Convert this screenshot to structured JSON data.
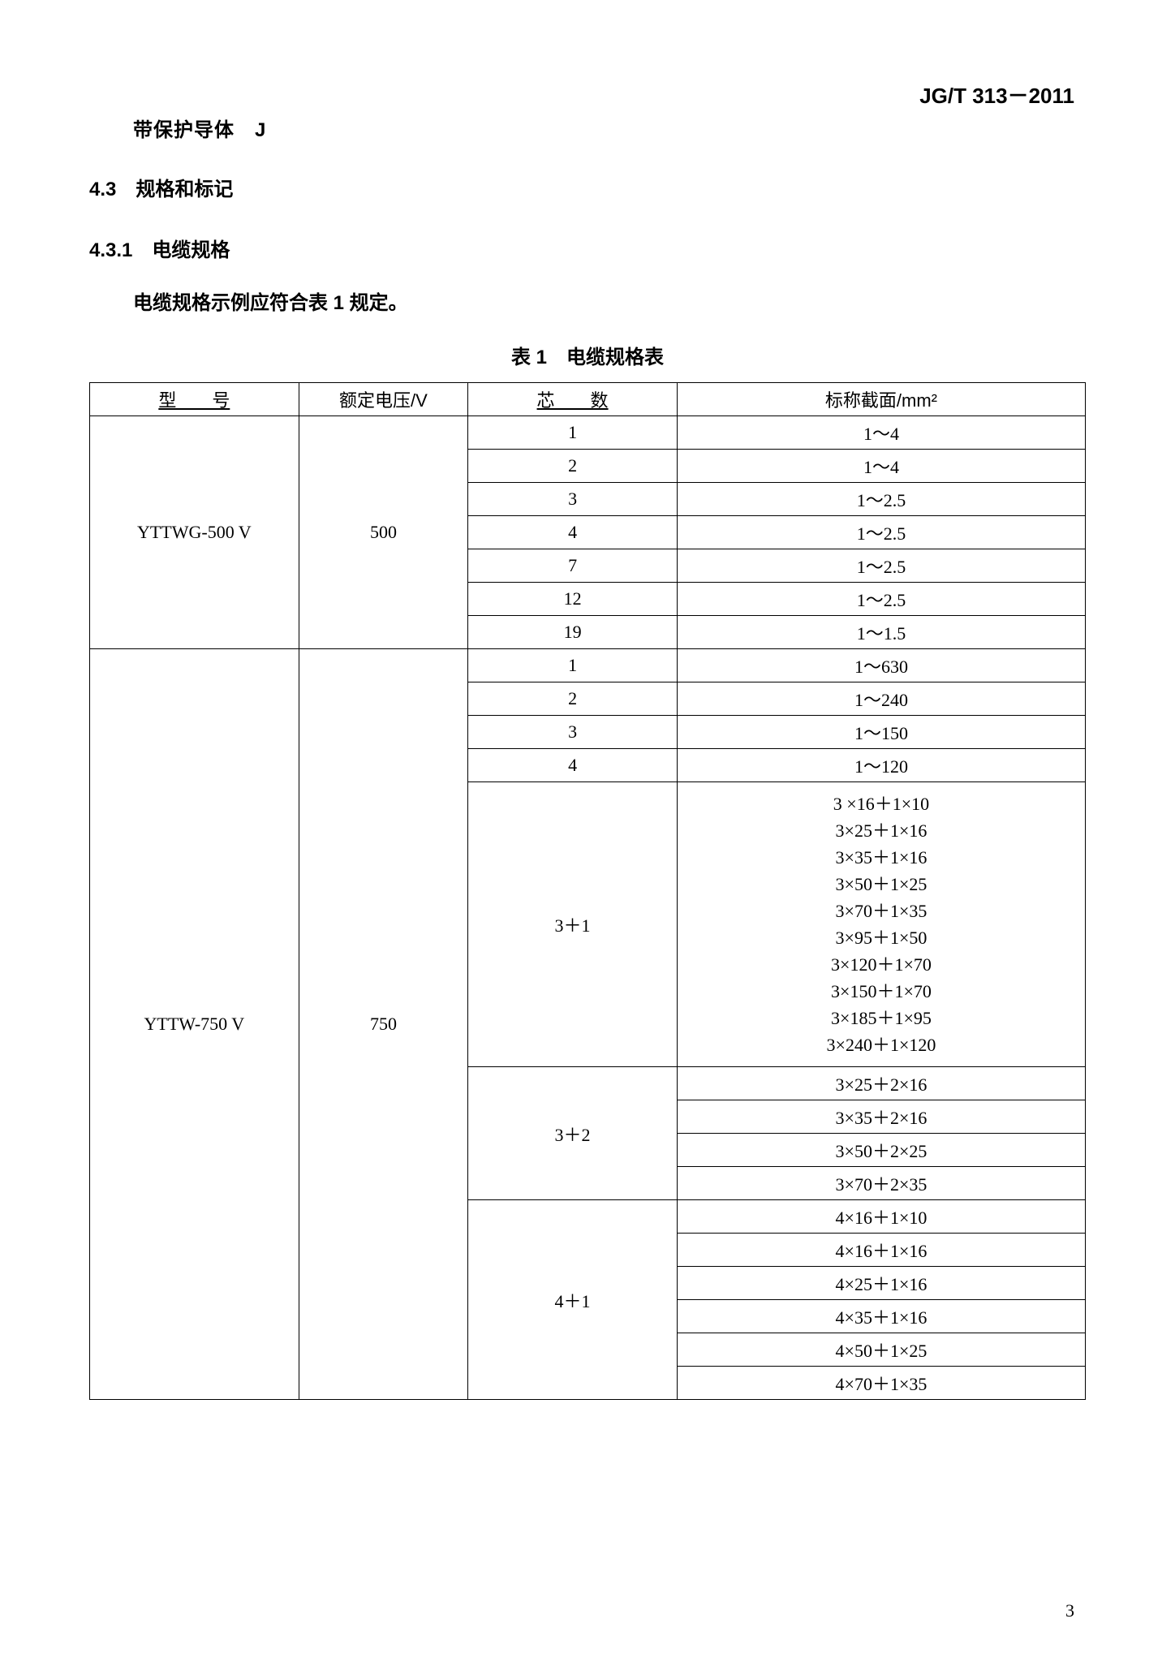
{
  "header_code": "JG/T 313－2011",
  "line1": "带保护导体　J",
  "section_4_3": "4.3　规格和标记",
  "section_4_3_1": "4.3.1　电缆规格",
  "body_text": "电缆规格示例应符合表 1 规定。",
  "table_caption": "表 1　电缆规格表",
  "page_num": "3",
  "table": {
    "headers": {
      "model": "型　　号",
      "voltage": "额定电压/V",
      "cores": "芯　　数",
      "section": "标称截面/mm²"
    },
    "group1": {
      "model": "YTTWG-500 V",
      "voltage": "500",
      "rows": [
        {
          "cores": "1",
          "section": "1～4"
        },
        {
          "cores": "2",
          "section": "1～4"
        },
        {
          "cores": "3",
          "section": "1～2.5"
        },
        {
          "cores": "4",
          "section": "1～2.5"
        },
        {
          "cores": "7",
          "section": "1～2.5"
        },
        {
          "cores": "12",
          "section": "1～2.5"
        },
        {
          "cores": "19",
          "section": "1～1.5"
        }
      ]
    },
    "group2": {
      "model": "YTTW-750 V",
      "voltage": "750",
      "rows_a": [
        {
          "cores": "1",
          "section": "1～630"
        },
        {
          "cores": "2",
          "section": "1～240"
        },
        {
          "cores": "3",
          "section": "1～150"
        },
        {
          "cores": "4",
          "section": "1～120"
        }
      ],
      "row_3plus1": {
        "cores": "3＋1",
        "sections": "3 ×16＋1×10\n3×25＋1×16\n3×35＋1×16\n3×50＋1×25\n3×70＋1×35\n3×95＋1×50\n3×120＋1×70\n3×150＋1×70\n3×185＋1×95\n3×240＋1×120"
      },
      "row_3plus2": {
        "cores": "3＋2",
        "sections": [
          "3×25＋2×16",
          "3×35＋2×16",
          "3×50＋2×25",
          "3×70＋2×35"
        ]
      },
      "row_4plus1": {
        "cores": "4＋1",
        "sections": [
          "4×16＋1×10",
          "4×16＋1×16",
          "4×25＋1×16",
          "4×35＋1×16",
          "4×50＋1×25",
          "4×70＋1×35"
        ]
      }
    }
  }
}
